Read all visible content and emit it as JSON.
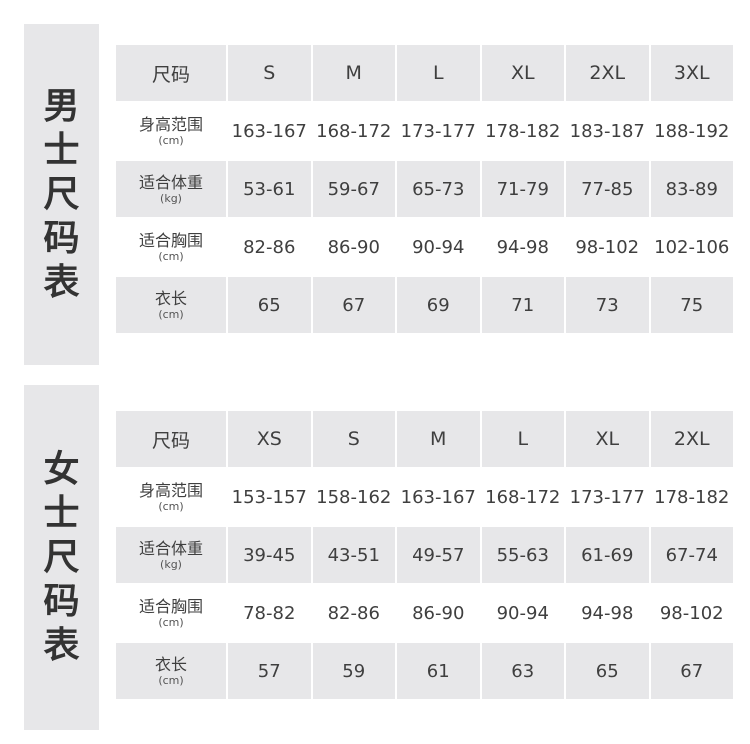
{
  "men": {
    "title": [
      "男",
      "士",
      "尺",
      "码",
      "表"
    ],
    "header": [
      "尺码",
      "S",
      "M",
      "L",
      "XL",
      "2XL",
      "3XL"
    ],
    "rows": [
      {
        "label": "身高范围",
        "unit": "(cm)",
        "values": [
          "163-167",
          "168-172",
          "173-177",
          "178-182",
          "183-187",
          "188-192"
        ]
      },
      {
        "label": "适合体重",
        "unit": "(kg)",
        "values": [
          "53-61",
          "59-67",
          "65-73",
          "71-79",
          "77-85",
          "83-89"
        ]
      },
      {
        "label": "适合胸围",
        "unit": "(cm)",
        "values": [
          "82-86",
          "86-90",
          "90-94",
          "94-98",
          "98-102",
          "102-106"
        ]
      },
      {
        "label": "衣长",
        "unit": "(cm)",
        "values": [
          "65",
          "67",
          "69",
          "71",
          "73",
          "75"
        ]
      }
    ]
  },
  "women": {
    "title": [
      "女",
      "士",
      "尺",
      "码",
      "表"
    ],
    "header": [
      "尺码",
      "XS",
      "S",
      "M",
      "L",
      "XL",
      "2XL"
    ],
    "rows": [
      {
        "label": "身高范围",
        "unit": "(cm)",
        "values": [
          "153-157",
          "158-162",
          "163-167",
          "168-172",
          "173-177",
          "178-182"
        ]
      },
      {
        "label": "适合体重",
        "unit": "(kg)",
        "values": [
          "39-45",
          "43-51",
          "49-57",
          "55-63",
          "61-69",
          "67-74"
        ]
      },
      {
        "label": "适合胸围",
        "unit": "(cm)",
        "values": [
          "78-82",
          "82-86",
          "86-90",
          "90-94",
          "94-98",
          "98-102"
        ]
      },
      {
        "label": "衣长",
        "unit": "(cm)",
        "values": [
          "57",
          "59",
          "61",
          "63",
          "65",
          "67"
        ]
      }
    ]
  }
}
